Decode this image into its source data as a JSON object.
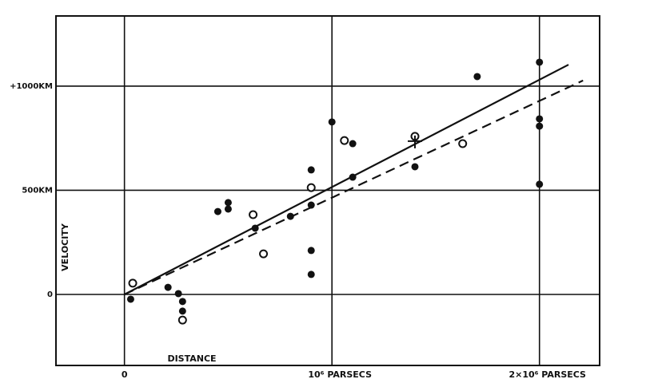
{
  "chart_data": {
    "type": "scatter",
    "x_label": "DISTANCE",
    "y_label": "VELOCITY",
    "xlim": [
      -0.33,
      2.29
    ],
    "ylim": [
      -341,
      1337
    ],
    "xticks": [
      0,
      {
        "value": 1,
        "label": "10⁶ PARSECS"
      },
      {
        "value": 2,
        "label": "2×10⁶ PARSECS"
      }
    ],
    "yticks": [
      0,
      {
        "value": 500,
        "label": "500KM"
      },
      {
        "value": 1000,
        "label": "+1000KM"
      }
    ],
    "grid": true,
    "series": [
      {
        "kind": "point",
        "marker": "filled",
        "color": "#111",
        "x": [
          0.03,
          0.21,
          0.26,
          0.28,
          0.28,
          0.45,
          0.5,
          0.5,
          0.63,
          0.8,
          0.9,
          0.9,
          0.9,
          0.9,
          1.0,
          1.1,
          1.1,
          1.4,
          1.7,
          2.0,
          2.0,
          2.0,
          2.0
        ],
        "values": [
          -23,
          34,
          4,
          -34,
          -80,
          398,
          441,
          410,
          318,
          375,
          598,
          429,
          211,
          96,
          828,
          724,
          563,
          613,
          1046,
          1115,
          843,
          808,
          529
        ]
      },
      {
        "kind": "point",
        "marker": "open",
        "color": "#111",
        "x": [
          0.04,
          0.28,
          0.62,
          0.67,
          0.9,
          1.06,
          1.4,
          1.63
        ],
        "values": [
          54,
          -123,
          383,
          195,
          513,
          739,
          759,
          724
        ]
      },
      {
        "kind": "point",
        "marker": "cross",
        "color": "#111",
        "x": [
          1.4
        ],
        "values": [
          736
        ]
      },
      {
        "kind": "line",
        "dash": "solid",
        "color": "#111",
        "x": [
          0,
          2.14
        ],
        "values": [
          0,
          1103
        ]
      },
      {
        "kind": "line",
        "dash": "dashed",
        "color": "#111",
        "x": [
          0,
          2.21
        ],
        "values": [
          0,
          1027
        ]
      }
    ]
  }
}
